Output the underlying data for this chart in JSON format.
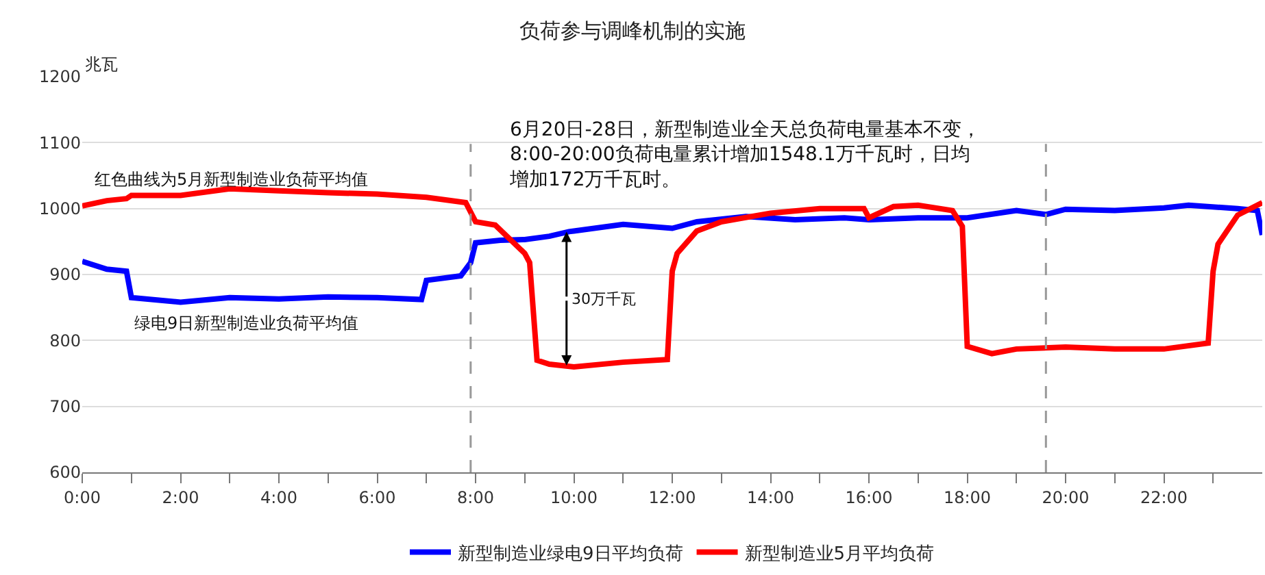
{
  "chart_data": {
    "type": "line",
    "title": "负荷参与调峰机制的实施",
    "ylabel": "兆瓦",
    "xlim": [
      0,
      24
    ],
    "ylim": [
      600,
      1200
    ],
    "yticks": [
      600,
      700,
      800,
      900,
      1000,
      1100,
      1200
    ],
    "xticks": [
      {
        "value": 0,
        "label": "0:00"
      },
      {
        "value": 1,
        "label": null
      },
      {
        "value": 2,
        "label": "2:00"
      },
      {
        "value": 3,
        "label": null
      },
      {
        "value": 4,
        "label": "4:00"
      },
      {
        "value": 5,
        "label": null
      },
      {
        "value": 6,
        "label": "6:00"
      },
      {
        "value": 7,
        "label": null
      },
      {
        "value": 8,
        "label": "8:00"
      },
      {
        "value": 9,
        "label": null
      },
      {
        "value": 10,
        "label": "10:00"
      },
      {
        "value": 11,
        "label": null
      },
      {
        "value": 12,
        "label": "12:00"
      },
      {
        "value": 13,
        "label": null
      },
      {
        "value": 14,
        "label": "14:00"
      },
      {
        "value": 15,
        "label": null
      },
      {
        "value": 16,
        "label": "16:00"
      },
      {
        "value": 17,
        "label": null
      },
      {
        "value": 18,
        "label": "18:00"
      },
      {
        "value": 19,
        "label": null
      },
      {
        "value": 20,
        "label": "20:00"
      },
      {
        "value": 21,
        "label": null
      },
      {
        "value": 22,
        "label": "22:00"
      },
      {
        "value": 23,
        "label": null
      }
    ],
    "grid": "y",
    "legend": "bottom",
    "marker": "none",
    "line_style": "solid",
    "series": [
      {
        "name": "新型制造业绿电9日平均负荷",
        "color": "#0000ff",
        "x": [
          0,
          0.5,
          0.9,
          1.0,
          2.0,
          3.0,
          4.0,
          5.0,
          6.0,
          6.9,
          7.0,
          7.7,
          7.9,
          8.0,
          8.5,
          9.0,
          9.5,
          9.9,
          10,
          11,
          12,
          12.5,
          13.5,
          14.5,
          15.5,
          16,
          17,
          18,
          19,
          19.6,
          20,
          21,
          22,
          22.5,
          23.5,
          23.9,
          24
        ],
        "values": [
          920,
          908,
          905,
          865,
          858,
          865,
          863,
          866,
          865,
          862,
          891,
          898,
          918,
          948,
          952,
          953,
          958,
          965,
          966,
          976,
          970,
          980,
          988,
          983,
          986,
          983,
          986,
          986,
          997,
          991,
          999,
          997,
          1001,
          1005,
          1000,
          997,
          960
        ]
      },
      {
        "name": "新型制造业5月平均负荷",
        "color": "#ff0000",
        "x": [
          0,
          0.5,
          0.9,
          1.0,
          2.0,
          3.0,
          4.0,
          5.0,
          6.0,
          7.0,
          7.8,
          8.0,
          8.4,
          9.0,
          9.1,
          9.25,
          9.5,
          10,
          11,
          11.9,
          12.0,
          12.1,
          12.5,
          13,
          14,
          15,
          15.9,
          16,
          16.5,
          17,
          17.7,
          17.9,
          18.0,
          18.5,
          19,
          20,
          21,
          22,
          22.9,
          23.0,
          23.1,
          23.5,
          24
        ],
        "values": [
          1004,
          1012,
          1015,
          1020,
          1020,
          1030,
          1027,
          1024,
          1022,
          1017,
          1009,
          980,
          975,
          932,
          918,
          770,
          764,
          760,
          767,
          771,
          905,
          932,
          966,
          980,
          993,
          1000,
          1000,
          986,
          1003,
          1005,
          997,
          973,
          791,
          780,
          787,
          790,
          787,
          787,
          796,
          905,
          946,
          990,
          1009
        ]
      }
    ],
    "ref_lines": [
      {
        "axis": "x",
        "value": 7.9,
        "color": "#999999",
        "line_style": "dashed"
      },
      {
        "axis": "x",
        "value": 19.6,
        "color": "#999999",
        "line_style": "dashed"
      }
    ],
    "annotations": [
      "红色曲线为5月新型制造业负荷平均值",
      "绿电9日新型制造业负荷平均值",
      "6月20日-28日，新型制造业全天总负荷电量基本不变，8:00-20:00负荷电量累计增加1548.1万千瓦时，日均增加172万千瓦时。",
      {
        "text": "30万千瓦",
        "x": 9.9,
        "y": 762
      }
    ]
  }
}
